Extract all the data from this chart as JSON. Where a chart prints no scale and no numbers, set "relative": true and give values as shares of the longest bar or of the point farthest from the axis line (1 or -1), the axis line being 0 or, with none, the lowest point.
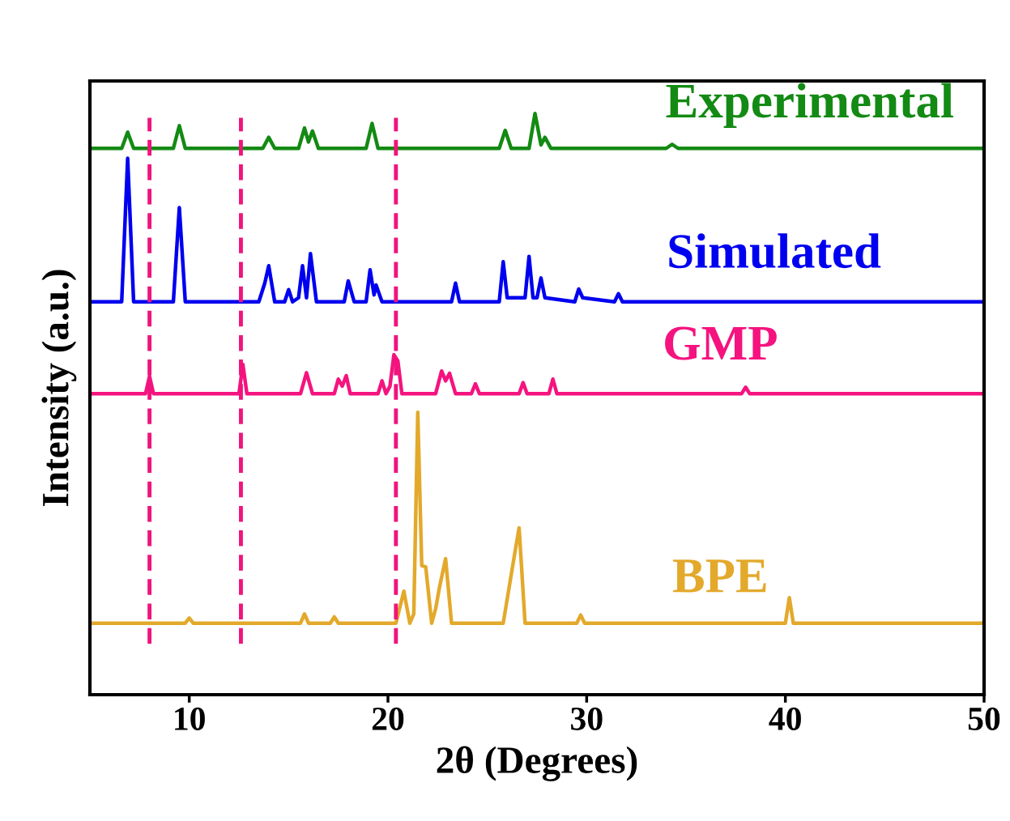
{
  "chart_data": {
    "type": "line",
    "relative": true,
    "xlabel": "2θ (Degrees)",
    "ylabel": "Intensity (a.u.)",
    "xlim": [
      5,
      50
    ],
    "xticks": [
      10,
      20,
      30,
      40,
      50
    ],
    "grid": false,
    "legend": false,
    "marker": "none",
    "line_style": "solid",
    "series": [
      {
        "name": "Experimental",
        "color": "#138a13",
        "x": [
          5,
          6.6,
          6.9,
          7.2,
          9.2,
          9.5,
          9.8,
          13.7,
          14.0,
          14.3,
          15.5,
          15.8,
          16.0,
          16.2,
          16.5,
          18.9,
          19.2,
          19.5,
          25.6,
          25.9,
          26.2,
          27.1,
          27.4,
          27.7,
          27.9,
          28.2,
          34.0,
          34.3,
          34.6,
          50
        ],
        "values": [
          0.94,
          0.94,
          0.968,
          0.94,
          0.94,
          0.979,
          0.94,
          0.94,
          0.959,
          0.94,
          0.94,
          0.975,
          0.951,
          0.97,
          0.94,
          0.94,
          0.983,
          0.94,
          0.94,
          0.971,
          0.94,
          0.94,
          1.0,
          0.946,
          0.959,
          0.94,
          0.94,
          0.947,
          0.94,
          0.94
        ]
      },
      {
        "name": "Simulated",
        "color": "#0000f0",
        "x": [
          5,
          6.6,
          6.9,
          7.2,
          9.2,
          9.5,
          9.8,
          13.5,
          13.8,
          14.0,
          14.3,
          14.8,
          15.0,
          15.2,
          15.5,
          15.7,
          15.9,
          16.1,
          16.4,
          17.8,
          18.0,
          18.3,
          18.9,
          19.1,
          19.3,
          19.4,
          19.7,
          23.2,
          23.4,
          23.6,
          25.6,
          25.8,
          26.0,
          26.9,
          27.1,
          27.3,
          27.5,
          27.7,
          27.9,
          29.4,
          29.6,
          29.8,
          31.4,
          31.6,
          31.8,
          50
        ],
        "values": [
          0.676,
          0.676,
          0.923,
          0.676,
          0.676,
          0.838,
          0.676,
          0.676,
          0.708,
          0.738,
          0.676,
          0.676,
          0.697,
          0.676,
          0.683,
          0.738,
          0.683,
          0.759,
          0.676,
          0.676,
          0.712,
          0.676,
          0.676,
          0.731,
          0.688,
          0.705,
          0.676,
          0.676,
          0.708,
          0.676,
          0.676,
          0.745,
          0.683,
          0.683,
          0.754,
          0.683,
          0.683,
          0.717,
          0.683,
          0.676,
          0.698,
          0.683,
          0.676,
          0.69,
          0.676,
          0.676
        ]
      },
      {
        "name": "GMP",
        "color": "#f5137f",
        "x": [
          5,
          7.8,
          8.0,
          8.2,
          12.5,
          12.7,
          12.9,
          15.6,
          15.9,
          16.2,
          17.3,
          17.5,
          17.7,
          17.9,
          18.1,
          19.5,
          19.7,
          19.9,
          20.1,
          20.3,
          20.5,
          20.7,
          22.4,
          22.7,
          22.9,
          23.1,
          23.4,
          24.2,
          24.4,
          24.6,
          26.6,
          26.8,
          27.0,
          28.1,
          28.3,
          28.5,
          37.8,
          38.0,
          38.2,
          50
        ],
        "values": [
          0.518,
          0.518,
          0.548,
          0.518,
          0.518,
          0.568,
          0.518,
          0.518,
          0.554,
          0.518,
          0.518,
          0.543,
          0.531,
          0.549,
          0.518,
          0.518,
          0.54,
          0.518,
          0.531,
          0.585,
          0.574,
          0.518,
          0.518,
          0.557,
          0.54,
          0.553,
          0.518,
          0.518,
          0.535,
          0.518,
          0.518,
          0.537,
          0.518,
          0.518,
          0.543,
          0.518,
          0.518,
          0.529,
          0.518,
          0.518
        ]
      },
      {
        "name": "BPE",
        "color": "#e3a92b",
        "x": [
          5,
          9.8,
          10.0,
          10.2,
          15.6,
          15.8,
          16.0,
          17.1,
          17.3,
          17.5,
          20.4,
          20.8,
          21.1,
          21.3,
          21.5,
          21.7,
          21.9,
          22.2,
          22.4,
          22.6,
          22.9,
          23.2,
          25.8,
          26.4,
          26.6,
          26.9,
          29.5,
          29.7,
          29.9,
          40.0,
          40.2,
          40.4,
          50
        ],
        "values": [
          0.123,
          0.123,
          0.132,
          0.123,
          0.123,
          0.139,
          0.123,
          0.123,
          0.134,
          0.123,
          0.123,
          0.178,
          0.123,
          0.139,
          0.486,
          0.222,
          0.22,
          0.123,
          0.148,
          0.186,
          0.234,
          0.123,
          0.123,
          0.247,
          0.287,
          0.123,
          0.123,
          0.137,
          0.123,
          0.123,
          0.167,
          0.123,
          0.123
        ]
      }
    ],
    "ref_lines": [
      {
        "axis": "x",
        "value": 8.0,
        "color": "#f0147c",
        "line_style": "dashed"
      },
      {
        "axis": "x",
        "value": 12.6,
        "color": "#f0147c",
        "line_style": "dashed"
      },
      {
        "axis": "x",
        "value": 20.4,
        "color": "#f0147c",
        "line_style": "dashed"
      }
    ]
  }
}
